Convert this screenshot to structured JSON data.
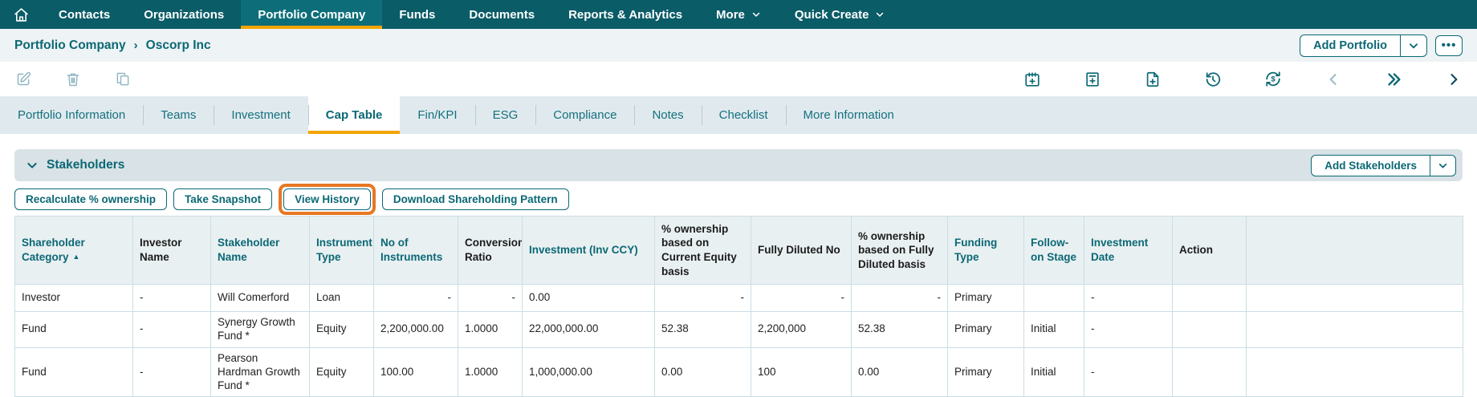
{
  "nav": {
    "home_icon": "home-icon",
    "items": [
      {
        "label": "Contacts"
      },
      {
        "label": "Organizations"
      },
      {
        "label": "Portfolio Company",
        "active": true
      },
      {
        "label": "Funds"
      },
      {
        "label": "Documents"
      },
      {
        "label": "Reports & Analytics"
      },
      {
        "label": "More",
        "caret": true
      },
      {
        "label": "Quick Create",
        "caret": true
      }
    ]
  },
  "breadcrumb": {
    "section": "Portfolio Company",
    "separator": "›",
    "current": "Oscorp Inc"
  },
  "header_actions": {
    "add_portfolio": "Add Portfolio",
    "more_options": "•••"
  },
  "toolbar": {
    "left_icons": [
      "edit-icon",
      "delete-icon",
      "copy-icon"
    ],
    "right_icons": [
      "calendar-add-icon",
      "note-add-icon",
      "file-add-icon",
      "history-icon",
      "currency-refresh-icon",
      "chevron-left-icon",
      "double-chevron-right-icon",
      "chevron-right-icon"
    ]
  },
  "tabs": {
    "items": [
      "Portfolio Information",
      "Teams",
      "Investment",
      "Cap Table",
      "Fin/KPI",
      "ESG",
      "Compliance",
      "Notes",
      "Checklist",
      "More Information"
    ],
    "active": "Cap Table"
  },
  "stakeholders": {
    "title": "Stakeholders",
    "add_button": "Add Stakeholders"
  },
  "action_buttons": [
    {
      "label": "Recalculate % ownership"
    },
    {
      "label": "Take Snapshot"
    },
    {
      "label": "View History",
      "highlighted": true
    },
    {
      "label": "Download Shareholding Pattern"
    }
  ],
  "table": {
    "columns": [
      {
        "label": "Shareholder Category",
        "teal": true,
        "sort": "▲"
      },
      {
        "label": "Investor Name",
        "teal": false
      },
      {
        "label": "Stakeholder Name",
        "teal": true
      },
      {
        "label": "Instrument Type",
        "teal": true
      },
      {
        "label": "No of Instruments",
        "teal": true
      },
      {
        "label": "Conversion Ratio",
        "teal": false
      },
      {
        "label": "Investment (Inv CCY)",
        "teal": true
      },
      {
        "label": "% ownership based on Current Equity basis",
        "teal": false
      },
      {
        "label": "Fully Diluted No",
        "teal": false
      },
      {
        "label": "% ownership based on Fully Diluted basis",
        "teal": false
      },
      {
        "label": "Funding Type",
        "teal": true
      },
      {
        "label": "Follow-on Stage",
        "teal": true
      },
      {
        "label": "Investment Date",
        "teal": true
      },
      {
        "label": "Action",
        "teal": false
      },
      {
        "label": "",
        "teal": false
      }
    ],
    "rows": [
      [
        {
          "v": "Investor"
        },
        {
          "v": "-"
        },
        {
          "v": "Will Comerford"
        },
        {
          "v": "Loan"
        },
        {
          "v": "-",
          "r": true
        },
        {
          "v": "-",
          "r": true
        },
        {
          "v": "0.00"
        },
        {
          "v": "-",
          "r": true
        },
        {
          "v": "-",
          "r": true
        },
        {
          "v": "-",
          "r": true
        },
        {
          "v": "Primary"
        },
        {
          "v": ""
        },
        {
          "v": "-"
        },
        {
          "v": ""
        },
        {
          "v": ""
        }
      ],
      [
        {
          "v": "Fund"
        },
        {
          "v": "-"
        },
        {
          "v": "Synergy Growth Fund *"
        },
        {
          "v": "Equity"
        },
        {
          "v": "2,200,000.00"
        },
        {
          "v": "1.0000"
        },
        {
          "v": "22,000,000.00"
        },
        {
          "v": "52.38"
        },
        {
          "v": "2,200,000"
        },
        {
          "v": "52.38"
        },
        {
          "v": "Primary"
        },
        {
          "v": "Initial"
        },
        {
          "v": "-"
        },
        {
          "v": ""
        },
        {
          "v": ""
        }
      ],
      [
        {
          "v": "Fund"
        },
        {
          "v": "-"
        },
        {
          "v": "Pearson Hardman Growth Fund *"
        },
        {
          "v": "Equity"
        },
        {
          "v": "100.00"
        },
        {
          "v": "1.0000"
        },
        {
          "v": "1,000,000.00"
        },
        {
          "v": "0.00"
        },
        {
          "v": "100"
        },
        {
          "v": "0.00"
        },
        {
          "v": "Primary"
        },
        {
          "v": "Initial"
        },
        {
          "v": "-"
        },
        {
          "v": ""
        },
        {
          "v": ""
        }
      ]
    ]
  },
  "colors": {
    "nav_bg": "#0a5c67",
    "nav_active_bg": "#0d6e79",
    "accent_amber": "#f2a400",
    "teal_text": "#0b6875",
    "highlight_orange": "#e87722",
    "table_header_bg": "#e9f0f2",
    "section_bar_bg": "#d9e2e6",
    "tabstrip_bg": "#e0eaee",
    "breadcrumb_bg": "#eef3f5"
  }
}
